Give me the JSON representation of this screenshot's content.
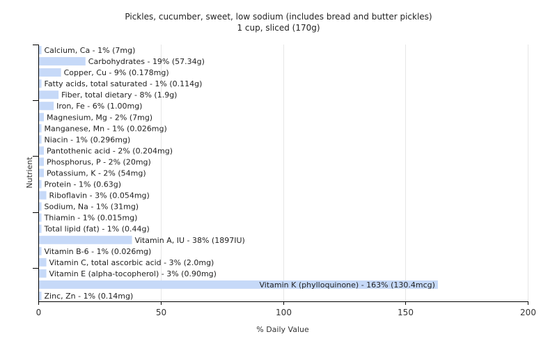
{
  "chart_data": {
    "type": "bar",
    "orientation": "horizontal",
    "title": "Pickles, cucumber, sweet, low sodium (includes bread and butter pickles)",
    "subtitle": "1 cup, sliced (170g)",
    "xlabel": "% Daily Value",
    "ylabel": "Nutrient",
    "xlim": [
      0,
      200
    ],
    "xticks": [
      0,
      50,
      100,
      150,
      200
    ],
    "grid": true,
    "bar_color": "#c6d9f8",
    "categories": [
      "Calcium, Ca",
      "Carbohydrates",
      "Copper, Cu",
      "Fatty acids, total saturated",
      "Fiber, total dietary",
      "Iron, Fe",
      "Magnesium, Mg",
      "Manganese, Mn",
      "Niacin",
      "Pantothenic acid",
      "Phosphorus, P",
      "Potassium, K",
      "Protein",
      "Riboflavin",
      "Sodium, Na",
      "Thiamin",
      "Total lipid (fat)",
      "Vitamin A, IU",
      "Vitamin B-6",
      "Vitamin C, total ascorbic acid",
      "Vitamin E (alpha-tocopherol)",
      "Vitamin K (phylloquinone)",
      "Zinc, Zn"
    ],
    "values": [
      1,
      19,
      9,
      1,
      8,
      6,
      2,
      1,
      1,
      2,
      2,
      2,
      1,
      3,
      1,
      1,
      1,
      38,
      1,
      3,
      3,
      163,
      1
    ],
    "labels": [
      "Calcium, Ca - 1% (7mg)",
      "Carbohydrates - 19% (57.34g)",
      "Copper, Cu - 9% (0.178mg)",
      "Fatty acids, total saturated - 1% (0.114g)",
      "Fiber, total dietary - 8% (1.9g)",
      "Iron, Fe - 6% (1.00mg)",
      "Magnesium, Mg - 2% (7mg)",
      "Manganese, Mn - 1% (0.026mg)",
      "Niacin - 1% (0.296mg)",
      "Pantothenic acid - 2% (0.204mg)",
      "Phosphorus, P - 2% (20mg)",
      "Potassium, K - 2% (54mg)",
      "Protein - 1% (0.63g)",
      "Riboflavin - 3% (0.054mg)",
      "Sodium, Na - 1% (31mg)",
      "Thiamin - 1% (0.015mg)",
      "Total lipid (fat) - 1% (0.44g)",
      "Vitamin A, IU - 38% (1897IU)",
      "Vitamin B-6 - 1% (0.026mg)",
      "Vitamin C, total ascorbic acid - 3% (2.0mg)",
      "Vitamin E (alpha-tocopherol) - 3% (0.90mg)",
      "Vitamin K (phylloquinone) - 163% (130.4mcg)",
      "Zinc, Zn - 1% (0.14mg)"
    ]
  }
}
